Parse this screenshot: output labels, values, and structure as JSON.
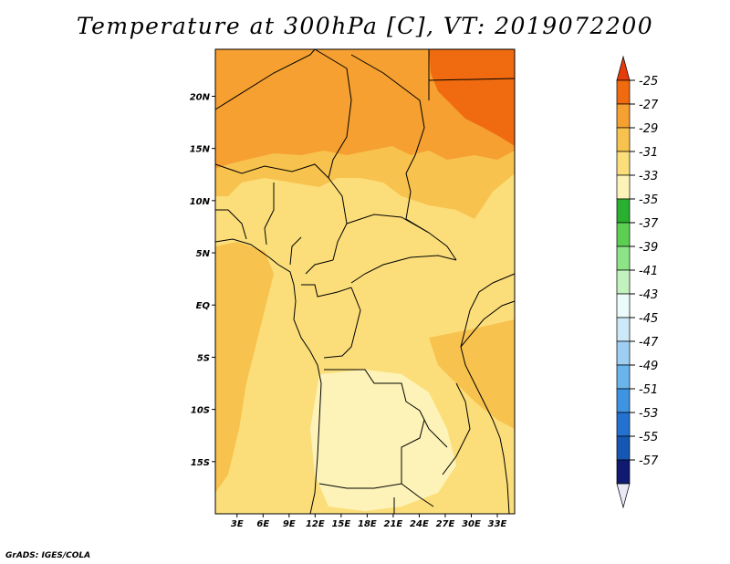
{
  "title": "Temperature at 300hPa [C], VT: 2019072200",
  "credit": "GrADS: IGES/COLA",
  "map": {
    "lat_labels": [
      {
        "text": "20N",
        "lat": 20
      },
      {
        "text": "15N",
        "lat": 15
      },
      {
        "text": "10N",
        "lat": 10
      },
      {
        "text": "5N",
        "lat": 5
      },
      {
        "text": "EQ",
        "lat": 0
      },
      {
        "text": "5S",
        "lat": -5
      },
      {
        "text": "10S",
        "lat": -10
      },
      {
        "text": "15S",
        "lat": -15
      }
    ],
    "lon_labels": [
      {
        "text": "3E",
        "lon": 3
      },
      {
        "text": "6E",
        "lon": 6
      },
      {
        "text": "9E",
        "lon": 9
      },
      {
        "text": "12E",
        "lon": 12
      },
      {
        "text": "15E",
        "lon": 15
      },
      {
        "text": "18E",
        "lon": 18
      },
      {
        "text": "21E",
        "lon": 21
      },
      {
        "text": "24E",
        "lon": 24
      },
      {
        "text": "27E",
        "lon": 27
      },
      {
        "text": "30E",
        "lon": 30
      },
      {
        "text": "33E",
        "lon": 33
      }
    ],
    "lon_range": [
      0.5,
      35
    ],
    "lat_range": [
      -20,
      24.5
    ],
    "fill_colors": {
      "warmest": "#f06a10",
      "warm": "#f5a030",
      "mild": "#f8c24e",
      "cool": "#fbde7a",
      "coolest": "#fdf3b8"
    }
  },
  "colorbar": {
    "labels": [
      "-25",
      "-27",
      "-29",
      "-31",
      "-33",
      "-35",
      "-37",
      "-39",
      "-41",
      "-43",
      "-45",
      "-47",
      "-49",
      "-51",
      "-53",
      "-55",
      "-57"
    ],
    "colors": [
      "#e43c0a",
      "#f06a10",
      "#f5a030",
      "#f8c24e",
      "#fbde7a",
      "#fdf3b8",
      "#2ab030",
      "#5ccf52",
      "#8de486",
      "#c2f2be",
      "#eafcfa",
      "#cde8f8",
      "#9ecff2",
      "#6ab4ec",
      "#3e94e2",
      "#2372d2",
      "#1656b4",
      "#101a70",
      "#e8e8f6"
    ]
  }
}
